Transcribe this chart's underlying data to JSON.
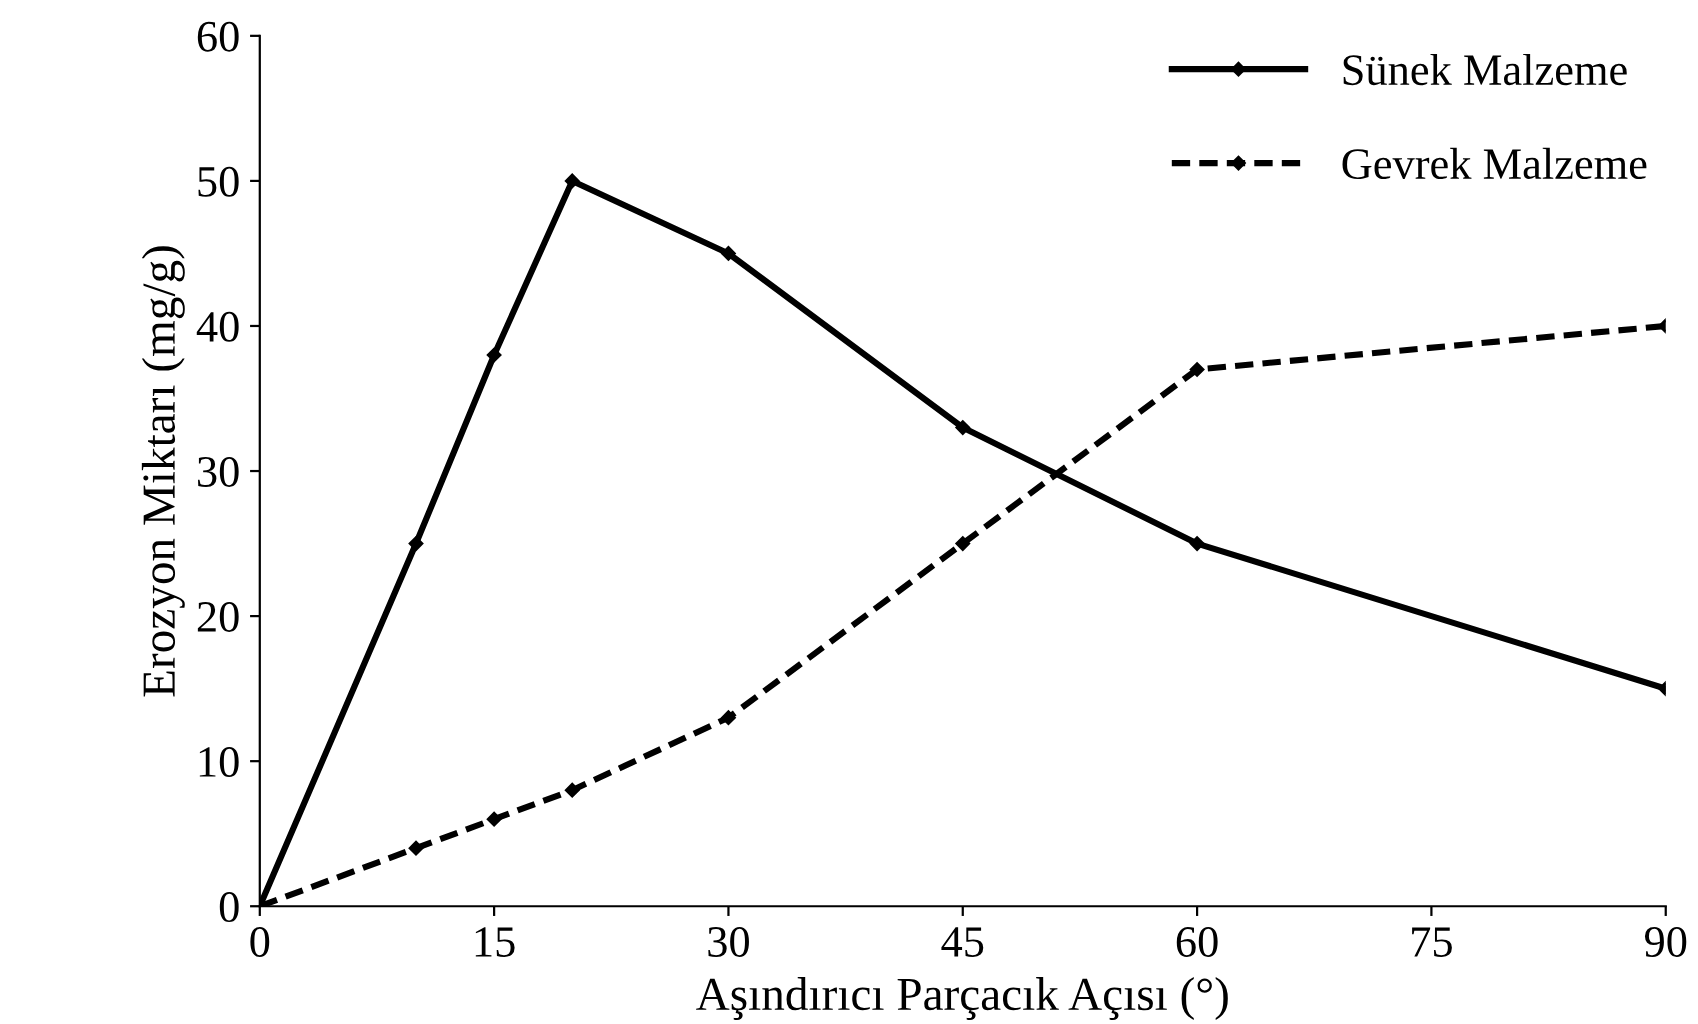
{
  "chart_data": {
    "type": "line",
    "xlabel": "Aşındırıcı Parçacık Açısı (°)",
    "ylabel": "Erozyon Miktarı (mg/g)",
    "x": [
      0,
      10,
      15,
      20,
      30,
      45,
      60,
      90
    ],
    "series": [
      {
        "name": "Sünek Malzeme",
        "color": "#000000",
        "line_style": "solid",
        "values": [
          0,
          25,
          38,
          50,
          45,
          33,
          25,
          15
        ]
      },
      {
        "name": "Gevrek Malzeme",
        "color": "#000000",
        "line_style": "dashed",
        "values": [
          0,
          4,
          6,
          8,
          13,
          25,
          37,
          40
        ]
      }
    ],
    "xlim": [
      0,
      90
    ],
    "xticks": [
      0,
      15,
      30,
      45,
      60,
      75,
      90
    ],
    "ylim": [
      0,
      60
    ],
    "yticks": [
      0,
      10,
      20,
      30,
      40,
      50,
      60
    ],
    "marker": "diamond",
    "grid": false,
    "legend": "top right"
  }
}
